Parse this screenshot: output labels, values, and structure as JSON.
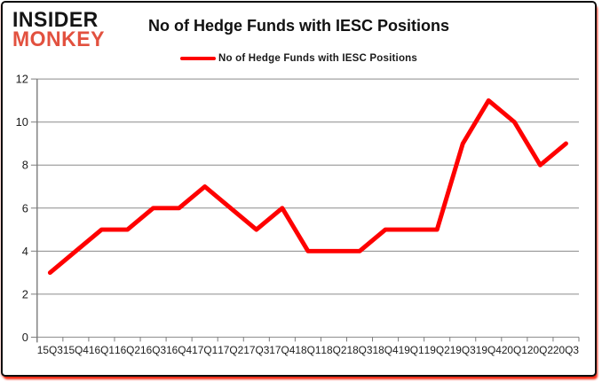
{
  "brand": {
    "line1": "INSIDER",
    "line2": "MONKEY"
  },
  "title": "No of Hedge Funds with IESC Positions",
  "legend": {
    "label": "No of Hedge Funds with IESC Positions",
    "color": "#fe0000"
  },
  "chart_data": {
    "type": "line",
    "title": "No of Hedge Funds with IESC Positions",
    "categories": [
      "15Q3",
      "15Q4",
      "16Q1",
      "16Q2",
      "16Q3",
      "16Q4",
      "17Q1",
      "17Q2",
      "17Q3",
      "17Q4",
      "18Q1",
      "18Q2",
      "18Q3",
      "18Q4",
      "19Q1",
      "19Q2",
      "19Q3",
      "19Q4",
      "20Q1",
      "20Q2",
      "20Q3"
    ],
    "series": [
      {
        "name": "No of Hedge Funds with IESC Positions",
        "color": "#fe0000",
        "values": [
          3,
          4,
          5,
          5,
          6,
          6,
          7,
          6,
          5,
          6,
          4,
          4,
          4,
          5,
          5,
          5,
          9,
          11,
          10,
          8,
          9
        ]
      }
    ],
    "xlabel": "",
    "ylabel": "",
    "ylim": [
      0,
      12
    ],
    "yticks": [
      0,
      2,
      4,
      6,
      8,
      10,
      12
    ],
    "grid": true,
    "legend_position": "top-center"
  },
  "colors": {
    "line_red": "#fe0000",
    "logo_red": "#e2513f",
    "grid_gray": "#8a8a8a",
    "axis_gray": "#7a7a7a",
    "text_dark": "#1c1c1c"
  }
}
